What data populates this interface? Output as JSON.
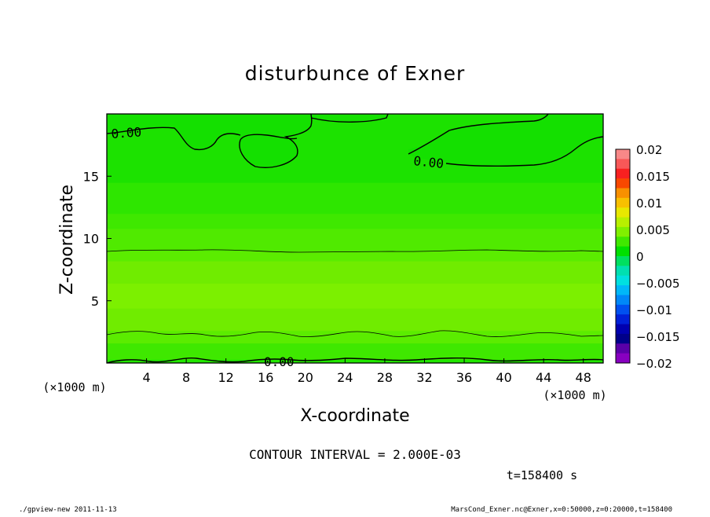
{
  "chart_data": {
    "type": "heatmap",
    "title": "disturbunce of Exner",
    "xlabel": "X-coordinate",
    "ylabel": "Z-coordinate",
    "x_unit": "(×1000 m)",
    "y_unit": "(×1000 m)",
    "xlim": [
      0,
      50
    ],
    "ylim": [
      0,
      20
    ],
    "xticks": [
      4,
      8,
      12,
      16,
      20,
      24,
      28,
      32,
      36,
      40,
      44,
      48
    ],
    "yticks": [
      5,
      10,
      15
    ],
    "contour_interval_text": "CONTOUR INTERVAL = 2.000E-03",
    "contour_labels": [
      "0.00",
      "0.00",
      "0.00"
    ],
    "colorbar": {
      "tick_labels": [
        "0.02",
        "0.015",
        "0.01",
        "0.005",
        "0",
        "−0.005",
        "−0.01",
        "−0.015",
        "−0.02"
      ],
      "range": [
        -0.02,
        0.02
      ],
      "colors": [
        "#f88888",
        "#f85858",
        "#f82020",
        "#f84800",
        "#f89000",
        "#f8c000",
        "#e8e800",
        "#b8f000",
        "#80f000",
        "#40e800",
        "#00e000",
        "#00e060",
        "#00e0b0",
        "#00e0e0",
        "#00b8f8",
        "#0088f8",
        "#0050f0",
        "#0020d8",
        "#0000b0",
        "#00008a",
        "#5a00a8",
        "#8800c0"
      ],
      "ticks_at": [
        0.02,
        0.015,
        0.01,
        0.005,
        0,
        -0.005,
        -0.01,
        -0.015,
        -0.02
      ]
    },
    "bands": [
      {
        "z": [
          0,
          0.3
        ],
        "value": 0.0005,
        "color": "#22e600"
      },
      {
        "z": [
          0.3,
          1.6
        ],
        "value": 0.0012,
        "color": "#3fe800"
      },
      {
        "z": [
          1.6,
          2.6
        ],
        "value": 0.002,
        "color": "#5bec00"
      },
      {
        "z": [
          2.6,
          4.4
        ],
        "value": 0.0032,
        "color": "#70ec00"
      },
      {
        "z": [
          4.4,
          6.4
        ],
        "value": 0.0042,
        "color": "#7cf000"
      },
      {
        "z": [
          6.4,
          8.2
        ],
        "value": 0.0032,
        "color": "#70ec00"
      },
      {
        "z": [
          8.2,
          9.0
        ],
        "value": 0.0022,
        "color": "#5bec00"
      },
      {
        "z": [
          9.0,
          10.8
        ],
        "value": 0.0018,
        "color": "#50ea00"
      },
      {
        "z": [
          10.8,
          12.0
        ],
        "value": 0.0012,
        "color": "#3fe800"
      },
      {
        "z": [
          12.0,
          14.5
        ],
        "value": 0.0008,
        "color": "#2ee600"
      },
      {
        "z": [
          14.5,
          20
        ],
        "value": 0.0003,
        "color": "#1ce200"
      }
    ]
  },
  "time_text": "t=158400 s",
  "footer_left": "./gpview-new   2011-11-13",
  "footer_right": "MarsCond_Exner.nc@Exner,x=0:50000,z=0:20000,t=158400"
}
